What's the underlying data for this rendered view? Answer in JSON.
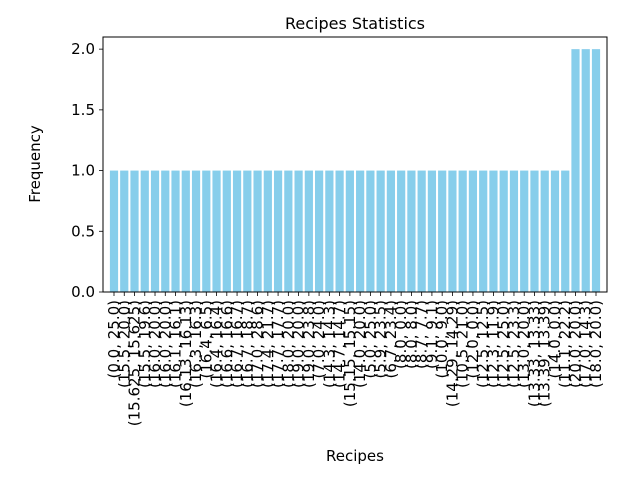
{
  "chart_data": {
    "type": "bar",
    "title": "Recipes Statistics",
    "xlabel": "Recipes",
    "ylabel": "Frequency",
    "ylim": [
      0,
      2.1
    ],
    "yticks": [
      "0.0",
      "0.5",
      "1.0",
      "1.5",
      "2.0"
    ],
    "bar_color": "#87ceeb",
    "categories": [
      "(0.0, 25.0)",
      "(15.5, 20.0)",
      "(15.625, 15.625)",
      "(15.5, 19.6)",
      "(16.0, 20.0)",
      "(16.0, 20.0)",
      "(16.1, 16.1)",
      "(16.13, 16.13)",
      "(16.3, 16.3)",
      "(16.4, 6.5)",
      "(16.4, 16.4)",
      "(16.6, 16.6)",
      "(16.7, 16.7)",
      "(16.7, 18.7)",
      "(17.0, 28.6)",
      "(17.4, 21.7)",
      "(17.7, 17.7)",
      "(18.0, 20.0)",
      "(19.0, 20.0)",
      "(19.0, 23.8)",
      "(7.0, 24.0)",
      "(14.3, 14.3)",
      "(14.7, 14.7)",
      "(15.15, 15.15)",
      "(14.0, 20.0)",
      "(5.0, 25.0)",
      "(5.9, 23.5)",
      "(6.7, 23.4)",
      "(8.0, 0.0)",
      "(8.0, 8.0)",
      "(8.7, 7.7)",
      "(9.1, 9.1)",
      "(10.0, 9.0)",
      "(14.29, 14.29)",
      "(10.5, 21.0)",
      "(12.0, 0.0)",
      "(12.5, 12.5)",
      "(12.3, 11.9)",
      "(12.5, 25.0)",
      "(12.5, 23.3)",
      "(13.0, 20.0)",
      "(13.33, 13.33)",
      "(13.39, 13.39)",
      "(14.0, 0.0)",
      "(11.1, 22.2)",
      "(20.0, 20.0)",
      "(17.0, 14.3)",
      "(18.0, 20.0)"
    ],
    "values": [
      1,
      1,
      1,
      1,
      1,
      1,
      1,
      1,
      1,
      1,
      1,
      1,
      1,
      1,
      1,
      1,
      1,
      1,
      1,
      1,
      1,
      1,
      1,
      1,
      1,
      1,
      1,
      1,
      1,
      1,
      1,
      1,
      1,
      1,
      1,
      1,
      1,
      1,
      1,
      1,
      1,
      1,
      1,
      1,
      1,
      2,
      2,
      2
    ]
  }
}
